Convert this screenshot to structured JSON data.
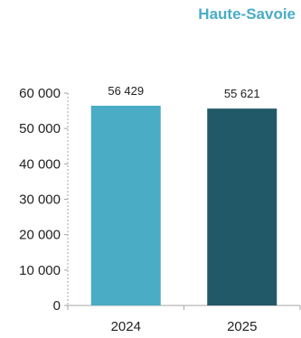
{
  "chart_data": {
    "type": "bar",
    "title": "Haute-Savoie",
    "categories": [
      "2024",
      "2025"
    ],
    "values": [
      56429,
      55621
    ],
    "value_labels": [
      "56 429",
      "55 621"
    ],
    "colors": [
      "#4bacc6",
      "#215968"
    ],
    "title_color": "#4bacc6",
    "ylim": [
      0,
      60000
    ],
    "yticks": [
      0,
      10000,
      20000,
      30000,
      40000,
      50000,
      60000
    ],
    "ytick_labels": [
      "0",
      "10 000",
      "20 000",
      "30 000",
      "40 000",
      "50 000",
      "60 000"
    ],
    "grid": false,
    "legend": "none"
  }
}
